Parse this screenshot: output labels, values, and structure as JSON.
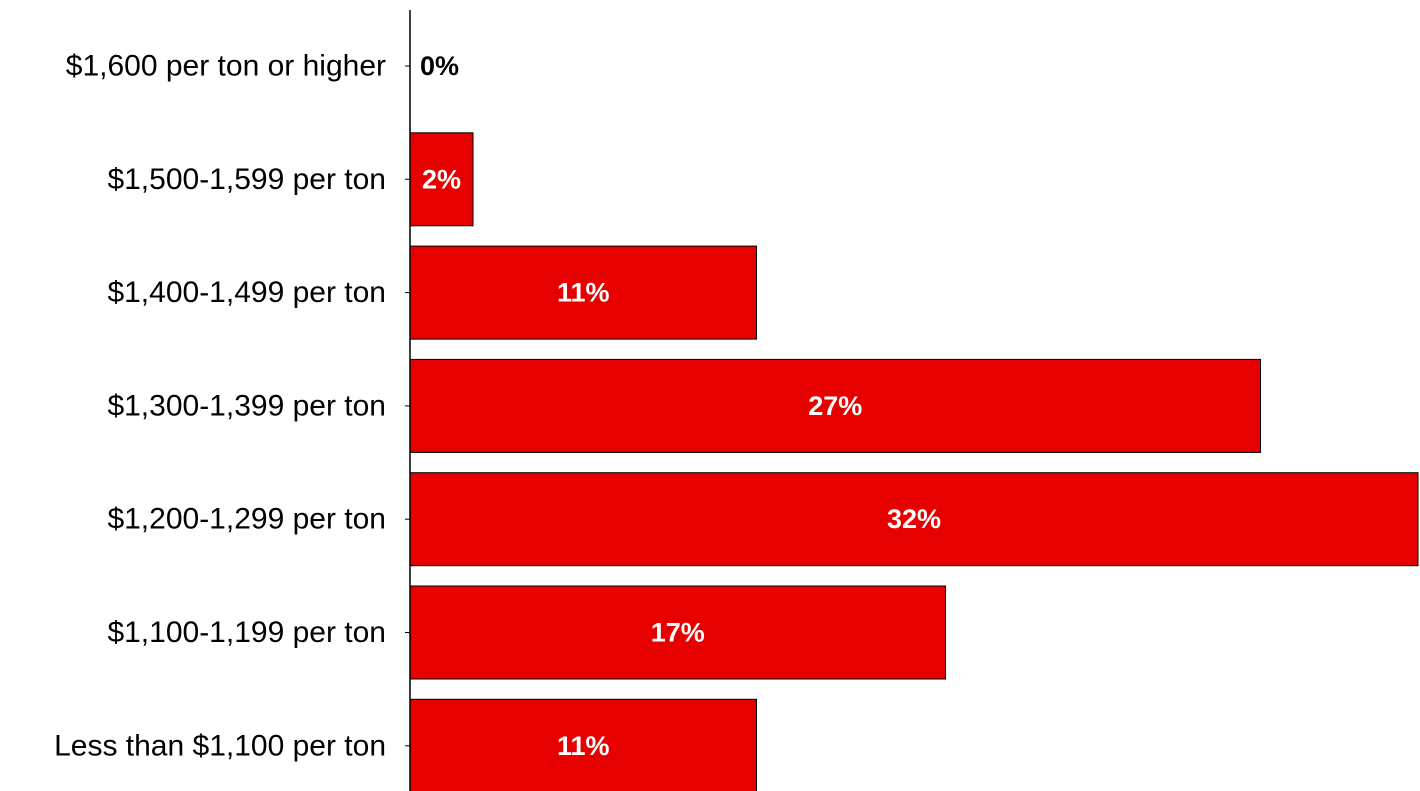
{
  "chart_data": {
    "type": "bar",
    "orientation": "horizontal",
    "categories": [
      "$1,600 per ton or higher",
      "$1,500-1,599 per ton",
      "$1,400-1,499 per ton",
      "$1,300-1,399 per ton",
      "$1,200-1,299 per ton",
      "$1,100-1,199 per ton",
      "Less than $1,100 per ton"
    ],
    "values": [
      0,
      2,
      11,
      27,
      32,
      17,
      11
    ],
    "value_labels": [
      "0%",
      "2%",
      "11%",
      "27%",
      "32%",
      "17%",
      "11%"
    ],
    "unit": "%",
    "xlim": [
      0,
      32
    ],
    "title": "",
    "xlabel": "",
    "ylabel": "",
    "grid": false,
    "legend": "none",
    "colors": {
      "bar": "#e60000",
      "bar_outline": "#000000",
      "label_inside": "#ffffff",
      "label_outside": "#000000",
      "axis": "#000000"
    }
  }
}
